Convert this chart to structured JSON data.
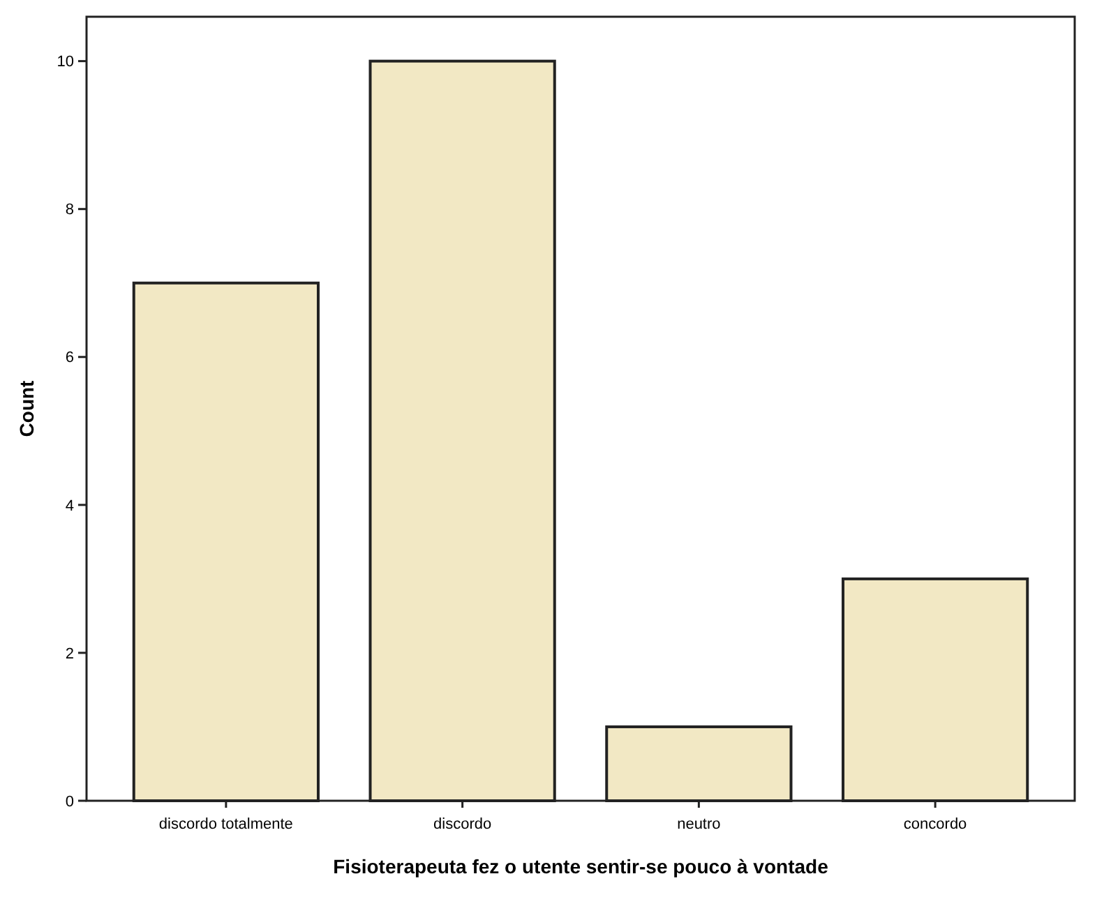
{
  "chart_data": {
    "type": "bar",
    "xlabel": "Fisioterapeuta fez o utente sentir-se pouco à vontade",
    "ylabel": "Count",
    "categories": [
      "discordo totalmente",
      "discordo",
      "neutro",
      "concordo"
    ],
    "values": [
      7,
      10,
      1,
      3
    ],
    "color": "#f2e8c4",
    "ylim": [
      0,
      10.6
    ],
    "yticks": [
      0,
      2,
      4,
      6,
      8,
      10
    ],
    "grid": false
  }
}
